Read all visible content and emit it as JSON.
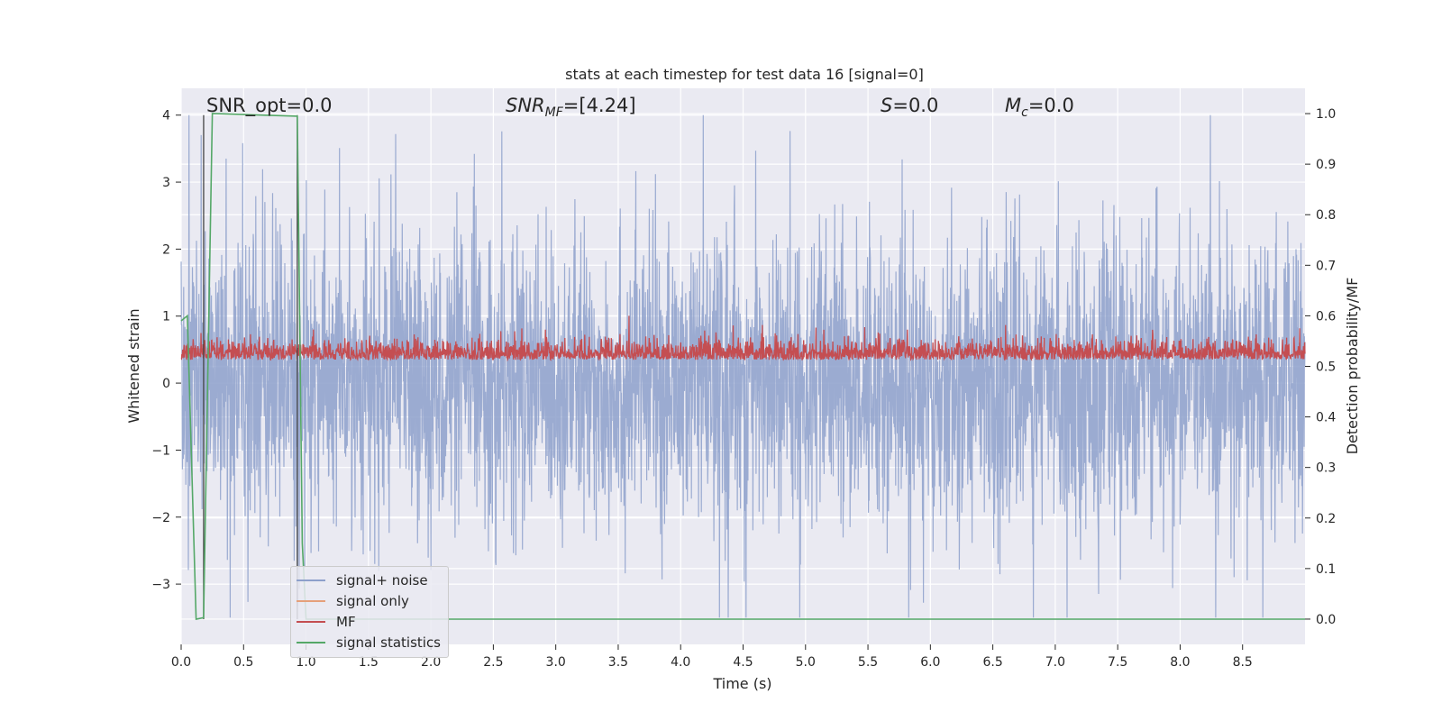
{
  "chart_data": {
    "type": "line",
    "title": "stats at each timestep for test data 16 [signal=0]",
    "xlabel": "Time (s)",
    "ylabel_left": "Whitened strain",
    "ylabel_right": "Detection probability/MF",
    "xlim": [
      0.0,
      9.0
    ],
    "ylim_left": [
      -3.9,
      4.4
    ],
    "ylim_right": [
      -0.05,
      1.05
    ],
    "x_ticks": [
      "0.0",
      "0.5",
      "1.0",
      "1.5",
      "2.0",
      "2.5",
      "3.0",
      "3.5",
      "4.0",
      "4.5",
      "5.0",
      "5.5",
      "6.0",
      "6.5",
      "7.0",
      "7.5",
      "8.0",
      "8.5"
    ],
    "y_ticks_left": [
      "−3",
      "−2",
      "−1",
      "0",
      "1",
      "2",
      "3",
      "4"
    ],
    "y_ticks_right": [
      "0.0",
      "0.1",
      "0.2",
      "0.3",
      "0.4",
      "0.5",
      "0.6",
      "0.7",
      "0.8",
      "0.9",
      "1.0"
    ],
    "grid": true,
    "legend_position": "lower-left",
    "annotations": {
      "snr_opt": "SNR_opt=0.0",
      "snr_mf_main": "SNR",
      "snr_mf_sub": "MF",
      "snr_mf_tail": "=[4.24]",
      "s_main": "S",
      "s_tail": "=0.0",
      "mc_main": "M",
      "mc_sub": "c",
      "mc_tail": "=0.0"
    },
    "vlines_x": [
      0.18,
      0.93
    ],
    "series": [
      {
        "name": "signal+ noise",
        "color": "#8da0cb",
        "axis": "left",
        "description_range": [
          -3.5,
          4.0
        ]
      },
      {
        "name": "signal only",
        "color": "#e5a07a",
        "axis": "left",
        "values": []
      },
      {
        "name": "MF",
        "color": "#c44e52",
        "axis": "right",
        "description_range": [
          0.5,
          0.6
        ]
      },
      {
        "name": "signal statistics",
        "color": "#55a868",
        "axis": "right",
        "x": [
          0.0,
          0.05,
          0.12,
          0.18,
          0.25,
          0.93,
          0.97,
          1.0,
          9.0
        ],
        "y": [
          0.59,
          0.6,
          0.0,
          0.003,
          1.0,
          0.995,
          0.15,
          0.0,
          0.0
        ]
      }
    ]
  }
}
